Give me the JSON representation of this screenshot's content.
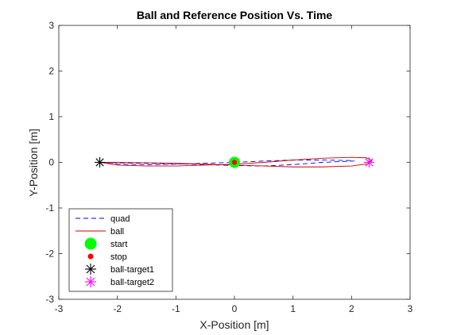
{
  "chart_data": {
    "type": "line",
    "title": "Ball and Reference Position Vs. Time",
    "xlabel": "X-Position [m]",
    "ylabel": "Y-Position [m]",
    "xlim": [
      -3,
      3
    ],
    "ylim": [
      -3,
      3
    ],
    "xticks": [
      -3,
      -2,
      -1,
      0,
      1,
      2,
      3
    ],
    "yticks": [
      -3,
      -2,
      -1,
      0,
      1,
      2,
      3
    ],
    "xtick_labels": [
      "-3",
      "-2",
      "-1",
      "0",
      "1",
      "2",
      "3"
    ],
    "ytick_labels": [
      "-3",
      "-2",
      "-1",
      "0",
      "1",
      "2",
      "3"
    ],
    "grid": false,
    "legend_position": "bottom-left",
    "series": [
      {
        "name": "quad",
        "kind": "line",
        "style": "dashed",
        "color": "#0000ff",
        "x": [
          -2.3,
          -2.0,
          -1.5,
          -1.0,
          -0.5,
          0.0,
          0.5,
          1.0,
          1.5,
          2.0,
          2.05,
          1.5,
          1.0,
          0.5,
          0.0,
          -0.5,
          -1.0,
          -1.5,
          -2.0,
          -2.3
        ],
        "y": [
          0.0,
          -0.04,
          -0.05,
          -0.04,
          -0.02,
          0.0,
          0.03,
          0.05,
          0.05,
          0.04,
          0.03,
          0.0,
          -0.05,
          -0.08,
          -0.07,
          -0.05,
          -0.03,
          -0.02,
          -0.01,
          0.0
        ]
      },
      {
        "name": "ball",
        "kind": "line",
        "style": "solid",
        "color": "#cc0000",
        "x": [
          -2.3,
          -2.0,
          -1.5,
          -1.0,
          -0.5,
          0.0,
          0.5,
          1.0,
          1.5,
          2.0,
          2.25,
          2.35,
          2.3,
          2.0,
          1.5,
          1.0,
          0.5,
          0.0,
          -0.5,
          -1.0,
          -1.5,
          -2.0,
          -2.3
        ],
        "y": [
          0.0,
          -0.06,
          -0.08,
          -0.08,
          -0.06,
          -0.04,
          0.0,
          0.05,
          0.09,
          0.11,
          0.1,
          0.04,
          -0.03,
          -0.08,
          -0.1,
          -0.1,
          -0.08,
          -0.06,
          -0.04,
          -0.02,
          -0.01,
          0.0,
          0.0
        ]
      },
      {
        "name": "start",
        "kind": "marker",
        "marker": "filled-circle-large",
        "color": "#00ff00",
        "x": [
          0
        ],
        "y": [
          0
        ]
      },
      {
        "name": "stop",
        "kind": "marker",
        "marker": "filled-circle-small",
        "color": "#ff0000",
        "x": [
          0
        ],
        "y": [
          0
        ]
      },
      {
        "name": "ball-target1",
        "kind": "marker",
        "marker": "asterisk",
        "color": "#000000",
        "x": [
          -2.3
        ],
        "y": [
          0
        ]
      },
      {
        "name": "ball-target2",
        "kind": "marker",
        "marker": "asterisk",
        "color": "#ff00ff",
        "x": [
          2.3
        ],
        "y": [
          0
        ]
      }
    ]
  }
}
